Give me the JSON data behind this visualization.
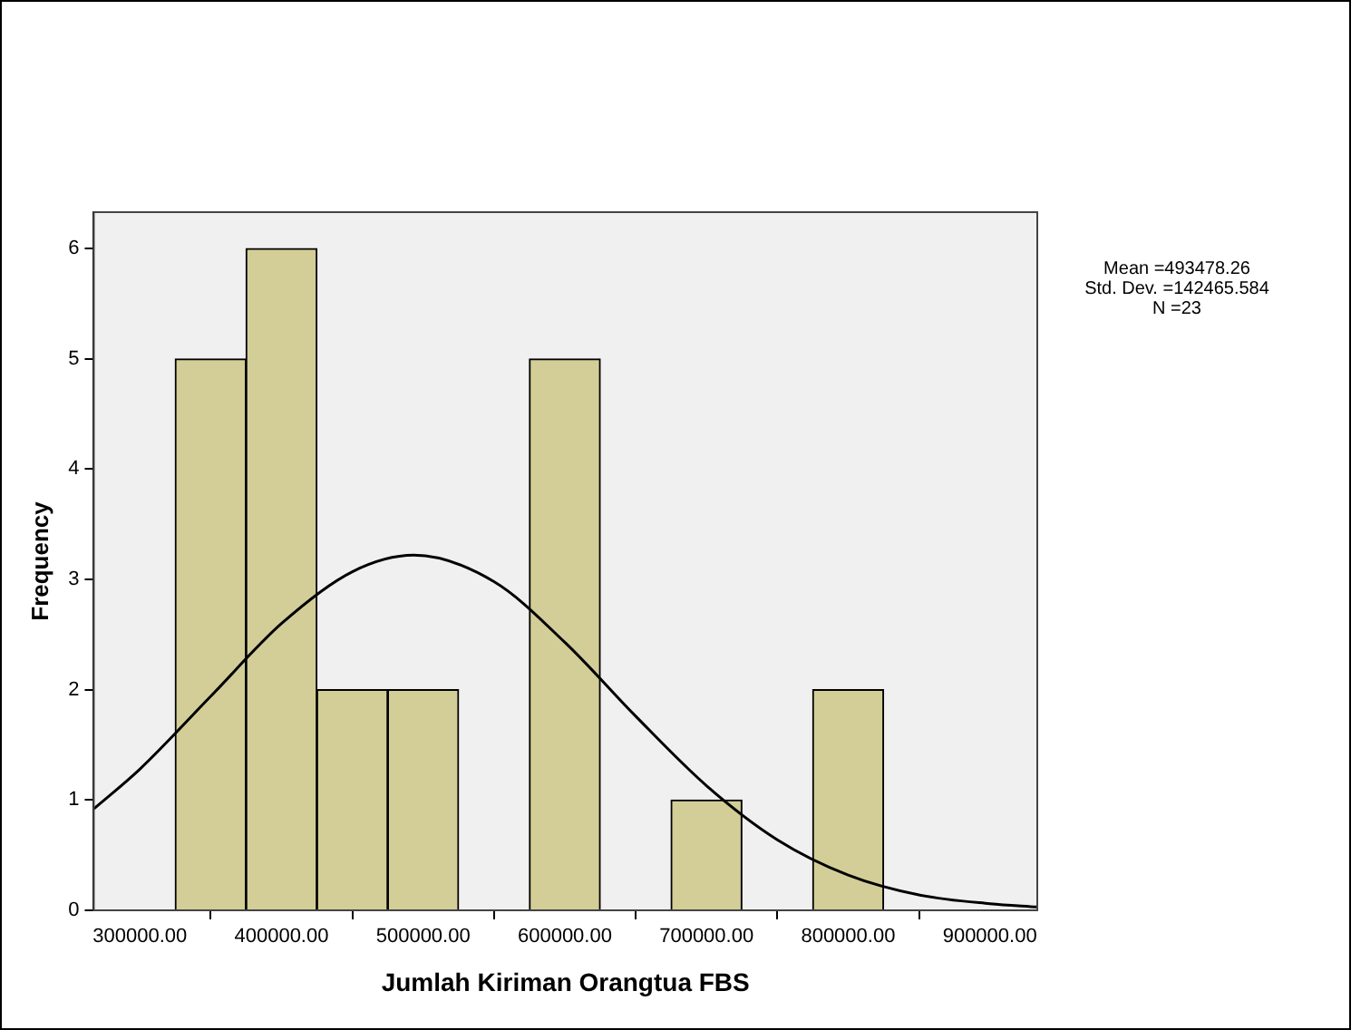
{
  "chart_data": {
    "type": "histogram",
    "xlabel": "Jumlah Kiriman Orangtua FBS",
    "ylabel": "Frequency",
    "bins": [
      325000,
      375000,
      425000,
      475000,
      525000,
      575000,
      625000,
      675000,
      725000,
      775000,
      825000
    ],
    "values": [
      5,
      6,
      2,
      2,
      0,
      5,
      0,
      1,
      0,
      2
    ],
    "color": "#d3ce97",
    "series": [
      {
        "type": "line",
        "color": "#000000",
        "x": [
          267500,
          300000,
          350000,
          400000,
          450000,
          493478,
          550000,
          600000,
          650000,
          700000,
          750000,
          800000,
          850000,
          900000,
          933500
        ],
        "values": [
          0.92,
          1.28,
          1.94,
          2.6,
          3.07,
          3.22,
          2.98,
          2.43,
          1.76,
          1.13,
          0.64,
          0.32,
          0.14,
          0.06,
          0.03
        ]
      }
    ],
    "xlim": [
      267500,
      933500
    ],
    "xticks": [
      {
        "value": 300000,
        "label": "300000.00"
      },
      {
        "value": 400000,
        "label": "400000.00"
      },
      {
        "value": 500000,
        "label": "500000.00"
      },
      {
        "value": 600000,
        "label": "600000.00"
      },
      {
        "value": 700000,
        "label": "700000.00"
      },
      {
        "value": 800000,
        "label": "800000.00"
      },
      {
        "value": 900000,
        "label": "900000.00"
      }
    ],
    "ylim": [
      0,
      6.33
    ],
    "yticks": [
      0,
      1,
      2,
      3,
      4,
      5,
      6
    ],
    "grid": false,
    "legend": false,
    "marker": "none",
    "line_style": "solid",
    "annotations": [
      "Mean =493478.26",
      "Std. Dev. =142465.584",
      "N =23"
    ]
  }
}
